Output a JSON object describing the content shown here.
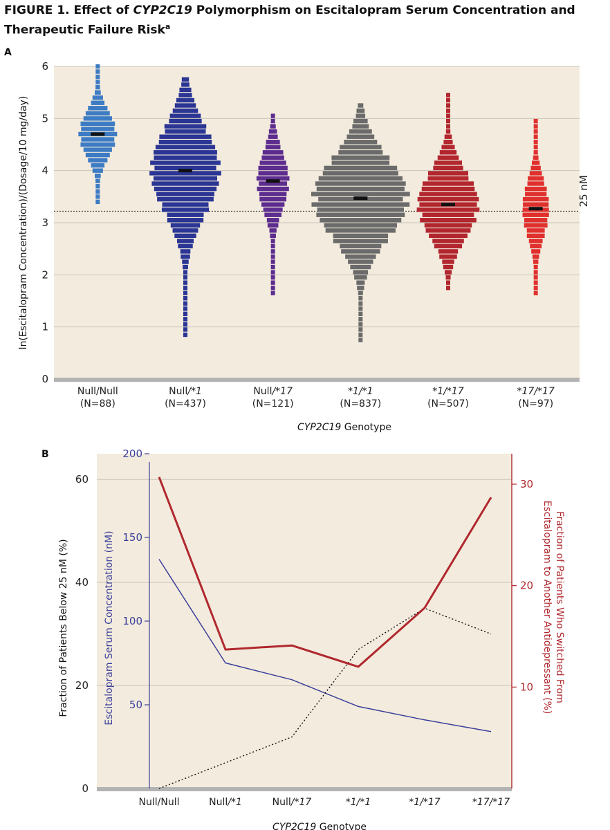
{
  "figure": {
    "label": "FIGURE 1.",
    "title_pre": "Effect of ",
    "title_gene": "CYP2C19",
    "title_post": " Polymorphism on Escitalopram Serum Concentration and Therapeutic Failure Risk",
    "footnote_mark": "a"
  },
  "chart_data": [
    {
      "panel": "A",
      "type": "scatter",
      "subtype": "beeswarm",
      "xlabel_gene": "CYP2C19",
      "xlabel_rest": " Genotype",
      "ylabel": "ln(Escitalopram Concentration)/(Dosage/10 mg/day)",
      "ylim": [
        0,
        6
      ],
      "yticks": [
        "0",
        "1",
        "2",
        "3",
        "4",
        "5",
        "6"
      ],
      "grid": true,
      "reference_line": {
        "value": 3.22,
        "label": "25 nM",
        "style": "dotted"
      },
      "categories": [
        {
          "genotype": "Null/Null",
          "n": "(N=88)",
          "median": 4.7,
          "min": 3.4,
          "max": 6.0,
          "color": "#3d7cc4"
        },
        {
          "genotype": "Null/*1",
          "n": "(N=437)",
          "median": 4.0,
          "min": 0.85,
          "max": 5.75,
          "color": "#2a3594"
        },
        {
          "genotype": "Null/*17",
          "n": "(N=121)",
          "median": 3.8,
          "min": 1.65,
          "max": 5.05,
          "color": "#5d2c8f"
        },
        {
          "genotype": "*1/*1",
          "n": "(N=837)",
          "median": 3.47,
          "min": 0.75,
          "max": 5.25,
          "color": "#6b6b6b"
        },
        {
          "genotype": "*1/*17",
          "n": "(N=507)",
          "median": 3.35,
          "min": 1.75,
          "max": 5.5,
          "color": "#b2262e"
        },
        {
          "genotype": "*17/*17",
          "n": "(N=97)",
          "median": 3.27,
          "min": 1.65,
          "max": 5.0,
          "color": "#e0302e"
        }
      ],
      "colors": {
        "background": "#f3ebdd",
        "grid": "#c9c3bb",
        "median": "#111111"
      }
    },
    {
      "panel": "B",
      "type": "line",
      "categories": [
        "Null/Null",
        "Null/*1",
        "Null/*17",
        "*1/*1",
        "*1/*17",
        "*17/*17"
      ],
      "xlabel_gene": "CYP2C19",
      "xlabel_rest": " Genotype",
      "axes": {
        "left_outer": {
          "label": "Fraction of Patients Below 25 nM (%)",
          "ylim": [
            0,
            65
          ],
          "ticks": [
            "0",
            "20",
            "40",
            "60"
          ]
        },
        "left_inner": {
          "label": "Escitalopram Serum Concentration (nM)",
          "ylim": [
            0,
            200
          ],
          "ticks": [
            "50",
            "100",
            "150",
            "200"
          ],
          "color": "#3a3f9a"
        },
        "right": {
          "label_line1": "Fraction of Patients Who Switched From",
          "label_line2": "Escitalopram to Another Antidepressant (%)",
          "ylim": [
            0,
            33
          ],
          "ticks": [
            "10",
            "20",
            "30"
          ],
          "color": "#b0282e"
        }
      },
      "series": [
        {
          "axis": "left_inner",
          "color": "#3a3f9a",
          "style": "solid",
          "values": [
            137,
            75,
            65,
            49,
            41,
            34
          ]
        },
        {
          "axis": "left_outer",
          "color": "#111111",
          "style": "dotted",
          "values": [
            0,
            5,
            10,
            27,
            35,
            30
          ]
        },
        {
          "axis": "right",
          "color": "#b0282e",
          "style": "solid",
          "values": [
            30.7,
            13.7,
            14.1,
            12.0,
            17.8,
            28.7
          ]
        }
      ],
      "colors": {
        "background": "#f3ebdd",
        "grid": "#c9c3bb"
      }
    }
  ]
}
